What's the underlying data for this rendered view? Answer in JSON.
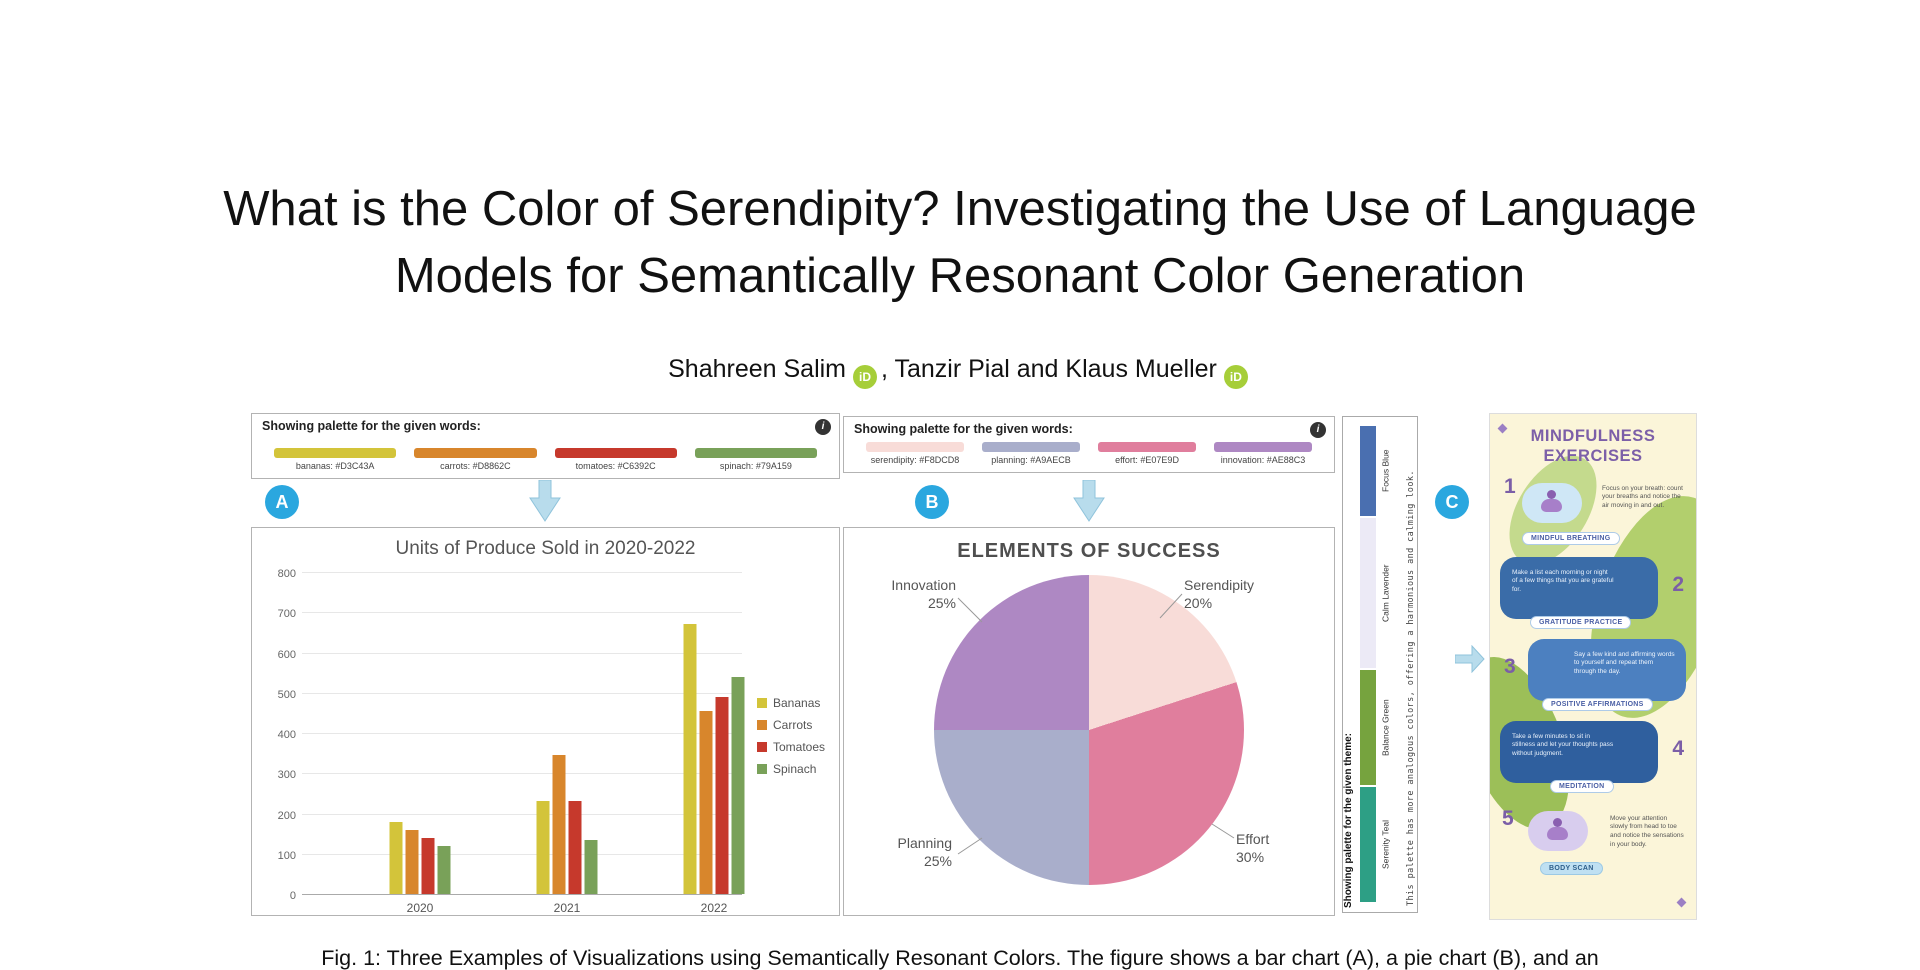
{
  "page": {
    "title_line1": "What is the Color of Serendipity? Investigating the Use of Language",
    "title_line2": "Models for Semantically Resonant Color Generation",
    "author1": "Shahreen Salim",
    "author_sep1": ", ",
    "author2": "Tanzir Pial",
    "author_sep2": " and ",
    "author3": "Klaus Mueller",
    "orcid_label": "iD",
    "caption": "Fig. 1: Three Examples of Visualizations using Semantically Resonant Colors. The figure shows a bar chart (A), a pie chart (B), and an"
  },
  "figure": {
    "badge_a": "A",
    "badge_b": "B",
    "badge_c": "C",
    "arrow_color": "#b8dcec"
  },
  "palette_a": {
    "header": "Showing palette for the given words:",
    "info_icon": "i",
    "swatches": [
      {
        "label": "bananas: #D3C43A",
        "color": "#d3c43a"
      },
      {
        "label": "carrots: #D8862C",
        "color": "#d8862c"
      },
      {
        "label": "tomatoes: #C6392C",
        "color": "#c6392c"
      },
      {
        "label": "spinach: #79A159",
        "color": "#79a159"
      }
    ]
  },
  "palette_b": {
    "header": "Showing palette for the given words:",
    "info_icon": "i",
    "swatches": [
      {
        "label": "serendipity: #F8DCD8",
        "color": "#f8dcd8"
      },
      {
        "label": "planning: #A9AECB",
        "color": "#a9aecb"
      },
      {
        "label": "effort: #E07E9D",
        "color": "#e07e9d"
      },
      {
        "label": "innovation: #AE88C3",
        "color": "#ae88c3"
      }
    ]
  },
  "palette_c": {
    "header": "Showing palette for the given theme:",
    "note": "This palette has more analogous colors, offering a harmonious and calming look.",
    "swatches": [
      {
        "label": "Focus Blue",
        "color": "#4a6fb0",
        "h": 90
      },
      {
        "label": "Calm Lavender",
        "color": "#eceaf6",
        "h": 150
      },
      {
        "label": "Balance Green",
        "color": "#76a33e",
        "h": 115
      },
      {
        "label": "Serenity Teal",
        "color": "#2d9f85",
        "h": 115
      }
    ]
  },
  "chart_data": [
    {
      "type": "bar",
      "title": "Units of Produce Sold in 2020-2022",
      "categories": [
        "2020",
        "2021",
        "2022"
      ],
      "series": [
        {
          "name": "Bananas",
          "color": "#d3c43a",
          "values": [
            180,
            230,
            670
          ]
        },
        {
          "name": "Carrots",
          "color": "#d8862c",
          "values": [
            160,
            345,
            455
          ]
        },
        {
          "name": "Tomatoes",
          "color": "#c6392c",
          "values": [
            140,
            230,
            490
          ]
        },
        {
          "name": "Spinach",
          "color": "#79a159",
          "values": [
            120,
            135,
            540
          ]
        }
      ],
      "ylim": [
        0,
        800
      ],
      "ytick_step": 100,
      "grid": true,
      "legend_position": "right"
    },
    {
      "type": "pie",
      "title": "ELEMENTS OF SUCCESS",
      "slices": [
        {
          "label": "Serendipity",
          "pct": 20,
          "color": "#f8dcd8"
        },
        {
          "label": "Effort",
          "pct": 30,
          "color": "#e07e9d"
        },
        {
          "label": "Planning",
          "pct": 25,
          "color": "#a9aecb"
        },
        {
          "label": "Innovation",
          "pct": 25,
          "color": "#ae88c3"
        }
      ],
      "legend_position": "none"
    }
  ],
  "infographic": {
    "title": "MINDFULNESS EXERCISES",
    "items": [
      {
        "num": "1",
        "label": "MINDFUL BREATHING",
        "text": "Focus on your breath: count your breaths and notice the air moving in and out."
      },
      {
        "num": "2",
        "label": "GRATITUDE PRACTICE",
        "text": "Make a list each morning or night of a few things that you are grateful for."
      },
      {
        "num": "3",
        "label": "POSITIVE AFFIRMATIONS",
        "text": "Say a few kind and affirming words to yourself and repeat them through the day."
      },
      {
        "num": "4",
        "label": "MEDITATION",
        "text": "Take a few minutes to sit in stillness and let your thoughts pass without judgment."
      },
      {
        "num": "5",
        "label": "BODY SCAN",
        "text": "Move your attention slowly from head to toe and notice the sensations in your body."
      }
    ]
  }
}
